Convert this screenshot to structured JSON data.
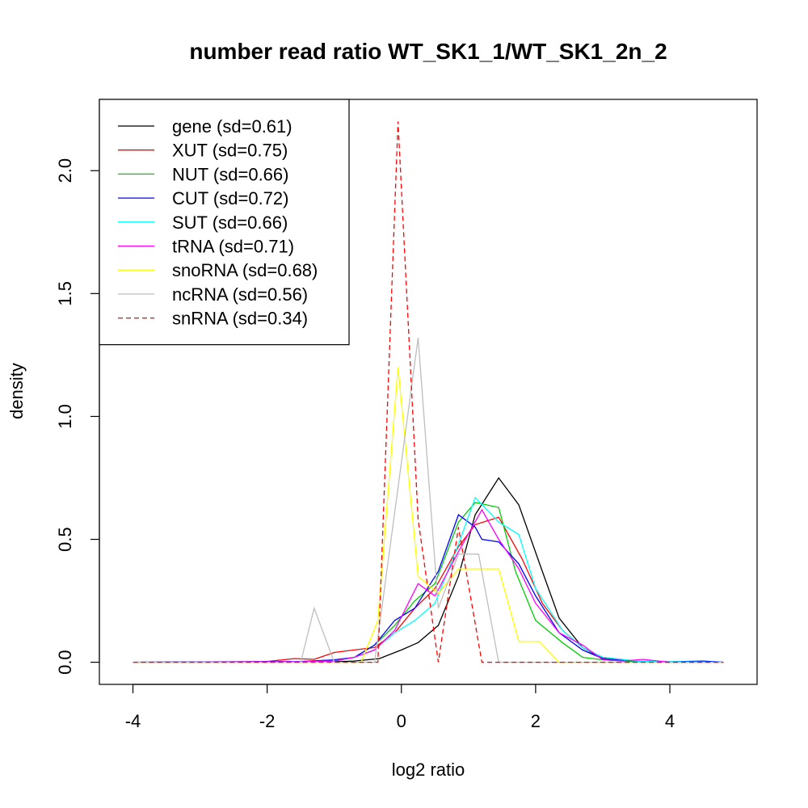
{
  "chart_data": {
    "type": "line",
    "title": "number read ratio WT_SK1_1/WT_SK1_2n_2",
    "xlabel": "log2 ratio",
    "ylabel": "density",
    "xlim": [
      -4.5,
      5.3
    ],
    "ylim": [
      -0.09,
      2.29
    ],
    "xticks": [
      -4,
      -2,
      0,
      2,
      4
    ],
    "yticks": [
      0.0,
      0.5,
      1.0,
      1.5,
      2.0
    ],
    "xtick_labels": [
      "-4",
      "-2",
      "0",
      "2",
      "4"
    ],
    "ytick_labels": [
      "0.0",
      "0.5",
      "1.0",
      "1.5",
      "2.0"
    ],
    "grid": false,
    "legend_position": "top-left",
    "series": [
      {
        "name": "gene (sd=0.61)",
        "color": "#000000",
        "dashed": false,
        "x": [
          -4.0,
          -1.5,
          -1.0,
          -0.7,
          -0.33,
          0.0,
          0.25,
          0.55,
          0.85,
          1.1,
          1.45,
          1.75,
          2.1,
          2.35,
          2.7,
          3.0,
          3.5,
          4.0,
          4.8
        ],
        "y": [
          0.0,
          0.0,
          0.002,
          0.005,
          0.015,
          0.05,
          0.08,
          0.15,
          0.35,
          0.6,
          0.75,
          0.64,
          0.37,
          0.18,
          0.06,
          0.015,
          0.005,
          0.0,
          0.0
        ]
      },
      {
        "name": "XUT (sd=0.75)",
        "color": "#ff0000",
        "dashed": false,
        "x": [
          -4.0,
          -2.5,
          -2.0,
          -1.6,
          -1.3,
          -1.0,
          -0.7,
          -0.4,
          -0.1,
          0.2,
          0.5,
          0.85,
          1.1,
          1.45,
          1.8,
          2.1,
          2.4,
          2.7,
          3.0,
          3.5,
          4.0,
          4.8
        ],
        "y": [
          0.0,
          0.002,
          0.003,
          0.015,
          0.012,
          0.04,
          0.05,
          0.06,
          0.12,
          0.22,
          0.3,
          0.47,
          0.56,
          0.59,
          0.42,
          0.24,
          0.13,
          0.06,
          0.02,
          0.005,
          0.002,
          0.0
        ]
      },
      {
        "name": "NUT (sd=0.66)",
        "color": "#00cd00",
        "dashed": false,
        "x": [
          -4.0,
          -1.5,
          -1.0,
          -0.7,
          -0.4,
          -0.1,
          0.2,
          0.5,
          0.85,
          1.1,
          1.45,
          1.7,
          2.0,
          2.4,
          2.7,
          3.0,
          3.5,
          4.0,
          4.8
        ],
        "y": [
          0.0,
          0.002,
          0.005,
          0.02,
          0.07,
          0.15,
          0.25,
          0.32,
          0.57,
          0.65,
          0.63,
          0.37,
          0.17,
          0.08,
          0.02,
          0.01,
          0.002,
          0.0,
          0.0
        ]
      },
      {
        "name": "CUT (sd=0.72)",
        "color": "#0000ff",
        "dashed": false,
        "x": [
          -4.0,
          -1.5,
          -1.0,
          -0.7,
          -0.4,
          -0.1,
          0.2,
          0.55,
          0.85,
          1.1,
          1.2,
          1.45,
          1.75,
          2.0,
          2.35,
          2.7,
          3.0,
          3.5,
          4.0,
          4.5,
          4.8
        ],
        "y": [
          0.0,
          0.003,
          0.01,
          0.02,
          0.07,
          0.17,
          0.22,
          0.37,
          0.6,
          0.55,
          0.5,
          0.49,
          0.4,
          0.27,
          0.12,
          0.05,
          0.015,
          0.005,
          0.002,
          0.005,
          0.0
        ]
      },
      {
        "name": "SUT (sd=0.66)",
        "color": "#00ffff",
        "dashed": false,
        "x": [
          -4.0,
          -1.5,
          -1.0,
          -0.7,
          -0.4,
          -0.1,
          0.2,
          0.5,
          0.85,
          1.1,
          1.45,
          1.75,
          2.0,
          2.4,
          2.7,
          3.0,
          3.5,
          4.0,
          4.8
        ],
        "y": [
          0.0,
          0.002,
          0.005,
          0.02,
          0.05,
          0.12,
          0.17,
          0.24,
          0.48,
          0.67,
          0.57,
          0.52,
          0.3,
          0.13,
          0.06,
          0.02,
          0.005,
          0.002,
          0.0
        ]
      },
      {
        "name": "tRNA (sd=0.71)",
        "color": "#ff00ff",
        "dashed": false,
        "x": [
          -4.0,
          -1.5,
          -1.0,
          -0.7,
          -0.4,
          -0.1,
          0.25,
          0.5,
          0.85,
          1.2,
          1.45,
          1.75,
          2.0,
          2.35,
          2.7,
          3.0,
          3.3,
          3.6,
          4.0,
          4.8
        ],
        "y": [
          0.0,
          0.002,
          0.005,
          0.02,
          0.05,
          0.13,
          0.32,
          0.27,
          0.45,
          0.62,
          0.5,
          0.38,
          0.24,
          0.12,
          0.07,
          0.01,
          0.005,
          0.012,
          0.0,
          0.0
        ]
      },
      {
        "name": "snoRNA (sd=0.68)",
        "color": "#ffff00",
        "dashed": false,
        "x": [
          -4.0,
          -0.6,
          -0.35,
          -0.05,
          0.25,
          0.55,
          0.85,
          1.15,
          1.45,
          1.75,
          2.05,
          2.35,
          4.8
        ],
        "y": [
          0.0,
          0.0,
          0.17,
          1.2,
          0.35,
          0.28,
          0.38,
          0.38,
          0.38,
          0.085,
          0.085,
          0.0,
          0.0
        ]
      },
      {
        "name": "ncRNA (sd=0.56)",
        "color": "#bebebe",
        "dashed": false,
        "x": [
          -4.0,
          -1.5,
          -1.3,
          -1.0,
          -0.4,
          0.25,
          0.55,
          0.85,
          1.15,
          1.45,
          4.8
        ],
        "y": [
          0.0,
          0.0,
          0.22,
          0.0,
          0.0,
          1.32,
          0.22,
          0.44,
          0.44,
          0.0,
          0.0
        ]
      },
      {
        "name": "snRNA (sd=0.34)",
        "color": "#ff0000",
        "dashed": true,
        "x": [
          -4.0,
          -0.35,
          -0.05,
          0.25,
          0.55,
          0.85,
          1.2,
          4.8
        ],
        "y": [
          0.0,
          0.0,
          2.2,
          0.58,
          0.0,
          0.55,
          0.0,
          0.0
        ]
      }
    ]
  }
}
